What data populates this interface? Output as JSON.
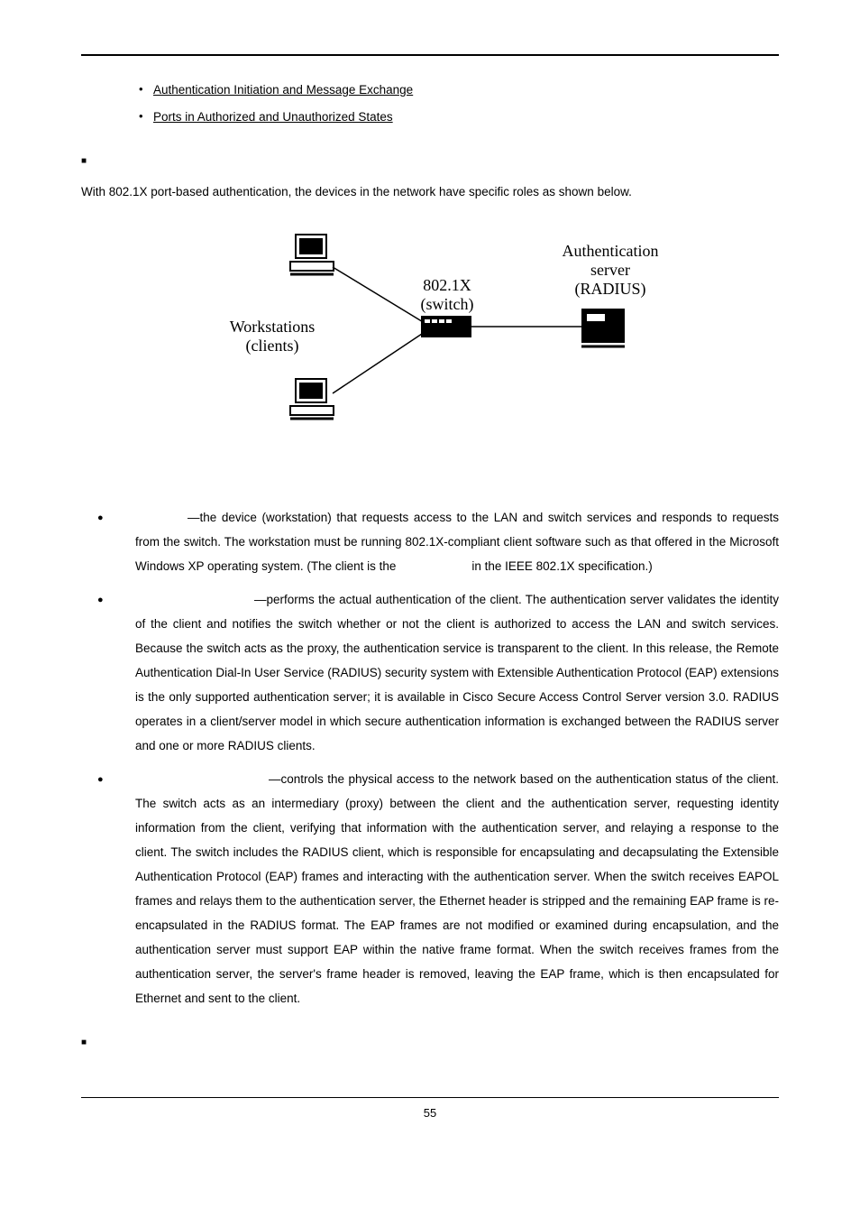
{
  "sublinks": [
    "Authentication Initiation and Message Exchange",
    "Ports in Authorized and Unauthorized States"
  ],
  "intro": "With 802.1X port-based authentication, the devices in the network have specific roles as shown below.",
  "diagram": {
    "workstations_label_l1": "Workstations",
    "workstations_label_l2": "(clients)",
    "switch_label_l1": "802.1X",
    "switch_label_l2": "(switch)",
    "server_label_l1": "Authentication",
    "server_label_l2": "server",
    "server_label_l3": "(RADIUS)"
  },
  "bullet1_pad_width": 58,
  "bullet1_text": "—the device (workstation) that requests access to the LAN and switch services and responds to requests from the switch. The workstation must be running 802.1X-compliant client software such as that offered in the Microsoft Windows XP operating system. (The client is the",
  "bullet1_gap_width": 84,
  "bullet1_tail": "in the IEEE 802.1X specification.)",
  "bullet2_pad_width": 132,
  "bullet2_text": "—performs the actual authentication of the client. The authentication server validates the identity of the client and notifies the switch whether or not the client is authorized to access the LAN and switch services. Because the switch acts as the proxy, the authentication service is transparent to the client. In this release, the Remote Authentication Dial-In User Service (RADIUS) security system with Extensible Authentication Protocol (EAP) extensions is the only supported authentication server; it is available in Cisco Secure Access Control Server version 3.0. RADIUS operates in a client/server model in which secure authentication information is exchanged between the RADIUS server and one or more RADIUS clients.",
  "bullet3_pad_width": 148,
  "bullet3_text": "—controls the physical access to the network based on the authentication status of the client. The switch acts as an intermediary (proxy) between the client and the authentication server, requesting identity information from the client, verifying that information with the authentication server, and relaying a response to the client. The switch includes the RADIUS client, which is responsible for encapsulating and decapsulating the Extensible Authentication Protocol (EAP) frames and interacting with the authentication server. When the switch receives EAPOL frames and relays them to the authentication server, the Ethernet header is stripped and the remaining EAP frame is re-encapsulated in the RADIUS format. The EAP frames are not modified or examined during encapsulation, and the authentication server must support EAP within the native frame format. When the switch receives frames from the authentication server, the server's frame header is removed, leaving the EAP frame, which is then encapsulated for Ethernet and sent to the client.",
  "page_number": "55",
  "colors": {
    "text": "#000000",
    "bg": "#ffffff",
    "rule": "#000000"
  }
}
